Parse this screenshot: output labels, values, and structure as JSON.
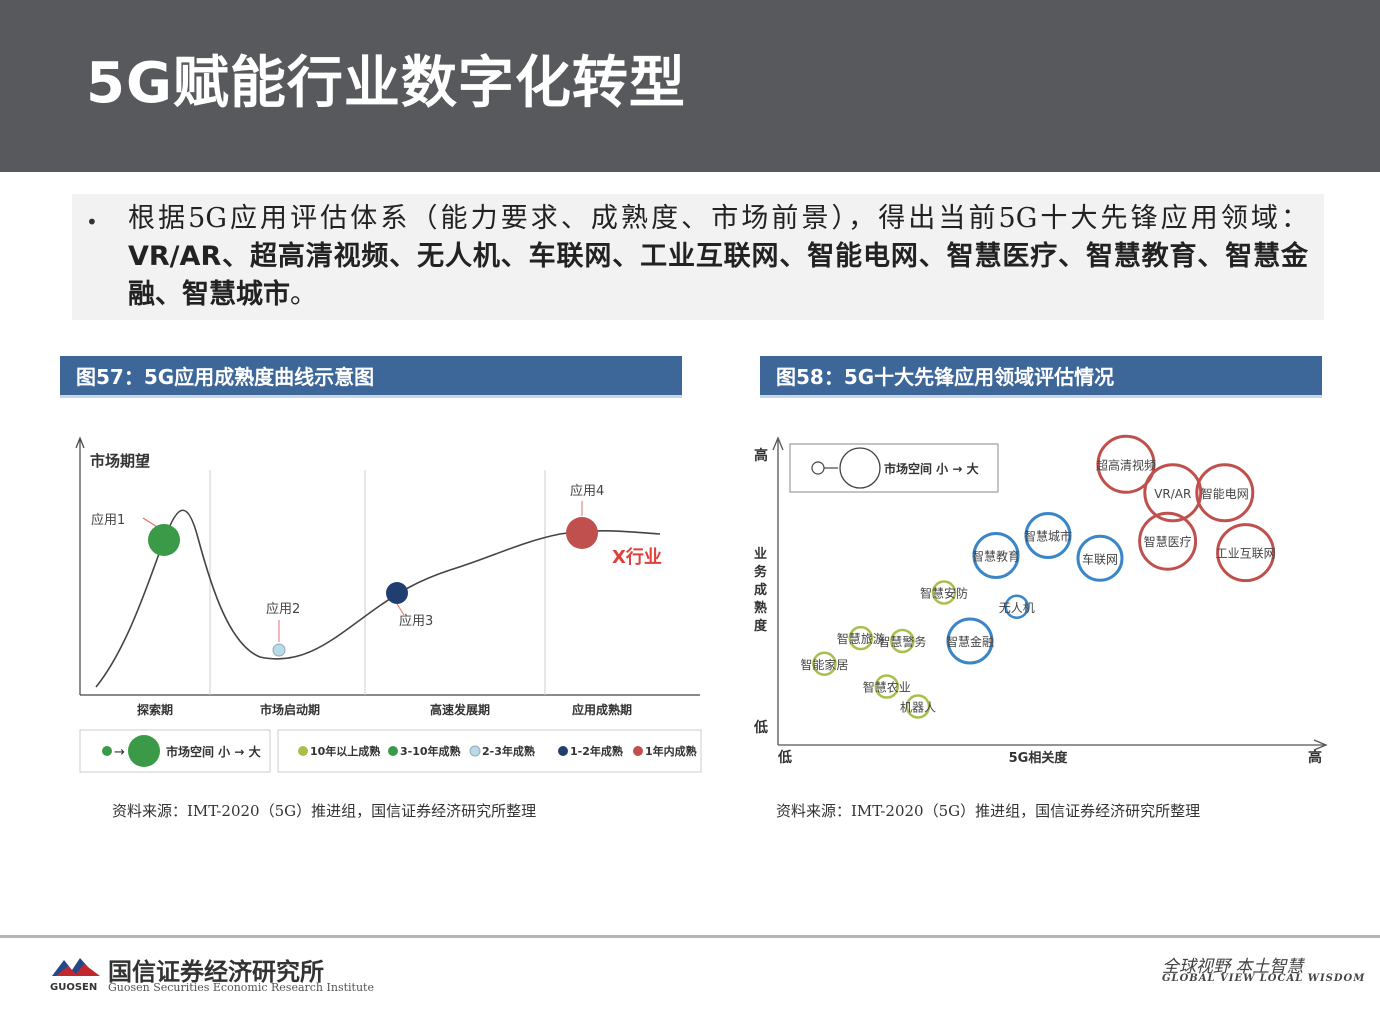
{
  "title": "5G赋能行业数字化转型",
  "bullet": {
    "part1": "根据5G应用评估体系（能力要求、成熟度、市场前景），得出当前5G十大先锋应用领域：",
    "part2": "VR/AR、超高清视频、无人机、车联网、工业互联网、智能电网、智慧医疗、智慧教育、智慧金融、智慧城市",
    "part3": "。"
  },
  "figure57": {
    "title": "图57：5G应用成熟度曲线示意图",
    "y_label": "市场期望",
    "phases": [
      "探索期",
      "市场启动期",
      "高速发展期",
      "应用成熟期"
    ],
    "apps": [
      "应用1",
      "应用2",
      "应用3",
      "应用4"
    ],
    "industry": "X行业",
    "legend_size": "市场空间 小 → 大",
    "legend_items": [
      "10年以上成熟",
      "3-10年成熟",
      "2-3年成熟",
      "1-2年成熟",
      "1年内成熟"
    ],
    "colors": [
      "#a7c04a",
      "#3a9a47",
      "#bcd9e6",
      "#213e70",
      "#c0504d"
    ],
    "source": "资料来源：IMT-2020（5G）推进组，国信证券经济研究所整理"
  },
  "figure58": {
    "title": "图58：5G十大先锋应用领域评估情况",
    "y_high": "高",
    "y_low": "低",
    "y_title": "业务成熟度",
    "x_low": "低",
    "x_high": "高",
    "x_title": "5G相关度",
    "legend_size": "市场空间 小 → 大",
    "source": "资料来源：IMT-2020（5G）推进组，国信证券经济研究所整理"
  },
  "chart_data": {
    "type": "scatter",
    "xlabel": "5G相关度",
    "ylabel": "业务成熟度",
    "points": [
      {
        "label": "智能家居",
        "x": 0.07,
        "y": 0.25,
        "size": "small",
        "color": "#a7c04a"
      },
      {
        "label": "智慧农业",
        "x": 0.19,
        "y": 0.17,
        "size": "small",
        "color": "#a7c04a"
      },
      {
        "label": "智慧旅游",
        "x": 0.14,
        "y": 0.34,
        "size": "small",
        "color": "#a7c04a"
      },
      {
        "label": "智慧警务",
        "x": 0.22,
        "y": 0.33,
        "size": "small",
        "color": "#a7c04a"
      },
      {
        "label": "机器人",
        "x": 0.25,
        "y": 0.1,
        "size": "small",
        "color": "#a7c04a"
      },
      {
        "label": "智慧安防",
        "x": 0.3,
        "y": 0.5,
        "size": "small",
        "color": "#a7c04a"
      },
      {
        "label": "智慧金融",
        "x": 0.35,
        "y": 0.33,
        "size": "medium",
        "color": "#3a86c8"
      },
      {
        "label": "无人机",
        "x": 0.44,
        "y": 0.45,
        "size": "small",
        "color": "#3a86c8"
      },
      {
        "label": "智慧教育",
        "x": 0.4,
        "y": 0.63,
        "size": "medium",
        "color": "#3a86c8"
      },
      {
        "label": "智慧城市",
        "x": 0.5,
        "y": 0.7,
        "size": "medium",
        "color": "#3a86c8"
      },
      {
        "label": "车联网",
        "x": 0.6,
        "y": 0.62,
        "size": "medium",
        "color": "#3a86c8"
      },
      {
        "label": "超高清视频",
        "x": 0.65,
        "y": 0.95,
        "size": "large",
        "color": "#c0504d"
      },
      {
        "label": "VR/AR",
        "x": 0.74,
        "y": 0.85,
        "size": "large",
        "color": "#c0504d"
      },
      {
        "label": "智能电网",
        "x": 0.84,
        "y": 0.85,
        "size": "large",
        "color": "#c0504d"
      },
      {
        "label": "智慧医疗",
        "x": 0.73,
        "y": 0.68,
        "size": "large",
        "color": "#c0504d"
      },
      {
        "label": "工业互联网",
        "x": 0.88,
        "y": 0.64,
        "size": "large",
        "color": "#c0504d"
      }
    ]
  },
  "footer": {
    "org_cn": "国信证券经济研究所",
    "org_en": "Guosen Securities Economic Research Institute",
    "org_abbr": "GUOSEN",
    "slogan_cn": "全球视野  本土智慧",
    "slogan_en": "GLOBAL VIEW   LOCAL WISDOM"
  }
}
